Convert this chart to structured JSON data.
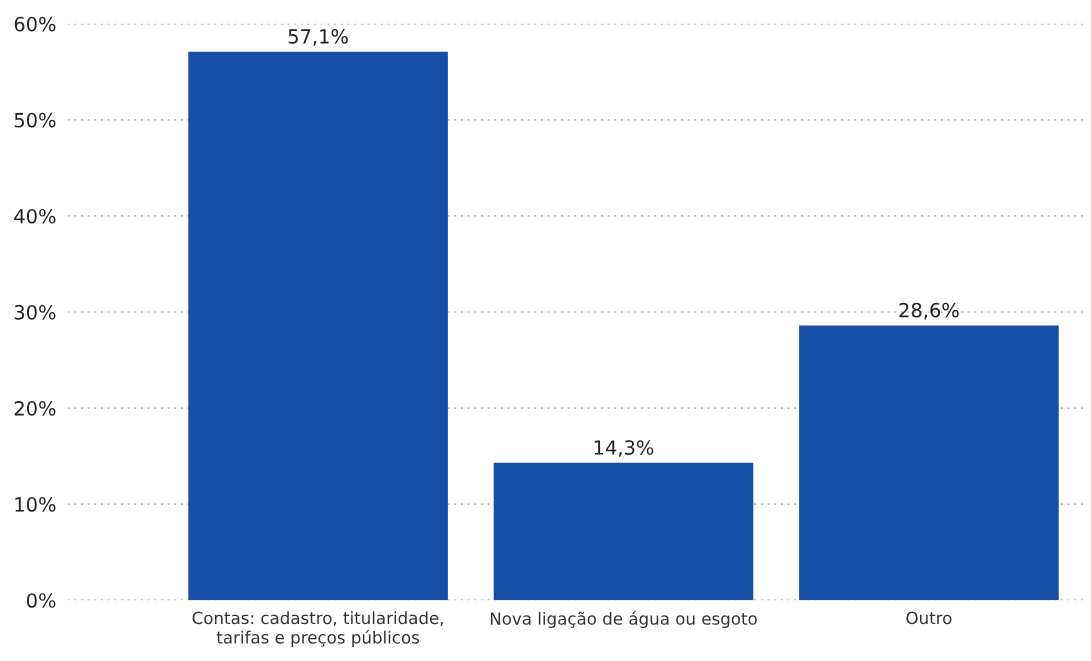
{
  "chart_data": {
    "type": "bar",
    "categories": [
      "Contas: cadastro, titularidade,\ntarifas e preços públicos",
      "Nova ligação de água ou esgoto",
      "Outro"
    ],
    "values": [
      57.1,
      14.3,
      28.6
    ],
    "value_labels": [
      "57,1%",
      "14,3%",
      "28,6%"
    ],
    "color": "#174ea6",
    "ylim": [
      0,
      60
    ],
    "yticks": [
      {
        "value": 0,
        "label": "0%"
      },
      {
        "value": 10,
        "label": "10%"
      },
      {
        "value": 20,
        "label": "20%"
      },
      {
        "value": 30,
        "label": "30%"
      },
      {
        "value": 40,
        "label": "40%"
      },
      {
        "value": 50,
        "label": "50%"
      },
      {
        "value": 60,
        "label": "60%"
      }
    ],
    "grid": "y"
  }
}
